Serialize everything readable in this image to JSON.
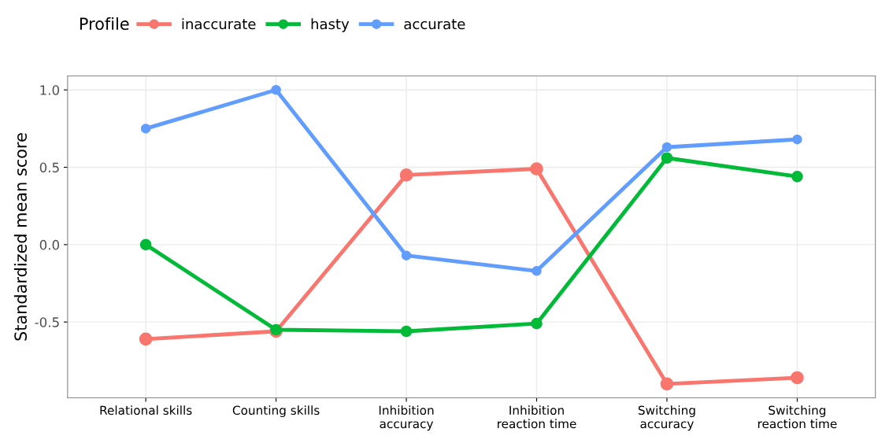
{
  "chart_data": {
    "type": "line",
    "ylabel": "Standardized mean score",
    "legend_title": "Profile",
    "categories": [
      "Relational skills",
      "Counting skills",
      "Inhibition\naccuracy",
      "Inhibition\nreaction time",
      "Switching\naccuracy",
      "Switching\nreaction time"
    ],
    "series": [
      {
        "name": "inaccurate",
        "color": "#f8766d",
        "values": [
          -0.61,
          -0.56,
          0.45,
          0.49,
          -0.9,
          -0.86
        ]
      },
      {
        "name": "hasty",
        "color": "#00ba38",
        "values": [
          0.0,
          -0.55,
          -0.56,
          -0.51,
          0.56,
          0.44
        ]
      },
      {
        "name": "accurate",
        "color": "#619cff",
        "values": [
          0.75,
          1.0,
          -0.07,
          -0.17,
          0.63,
          0.68
        ]
      }
    ],
    "ylim": [
      -0.99,
      1.09
    ],
    "yticks": [
      {
        "value": -0.5,
        "label": "-0.5"
      },
      {
        "value": 0.0,
        "label": "0.0"
      },
      {
        "value": 0.5,
        "label": "0.5"
      },
      {
        "value": 1.0,
        "label": "1.0"
      }
    ],
    "grid": true,
    "legend": "top left",
    "marker": "circle",
    "line_style": "solid"
  }
}
